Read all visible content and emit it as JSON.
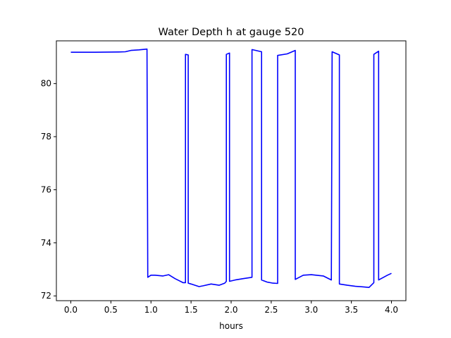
{
  "chart_data": {
    "type": "line",
    "title": "Water Depth h at gauge 520",
    "xlabel": "hours",
    "ylabel": "",
    "xlim": [
      -0.18,
      4.18
    ],
    "ylim": [
      71.82,
      81.61
    ],
    "xticks": [
      0.0,
      0.5,
      1.0,
      1.5,
      2.0,
      2.5,
      3.0,
      3.5,
      4.0
    ],
    "xtick_labels": [
      "0.0",
      "0.5",
      "1.0",
      "1.5",
      "2.0",
      "2.5",
      "3.0",
      "3.5",
      "4.0"
    ],
    "yticks": [
      72,
      74,
      76,
      78,
      80
    ],
    "ytick_labels": [
      "72",
      "74",
      "76",
      "78",
      "80"
    ],
    "grid": false,
    "series": [
      {
        "color": "#0000ff",
        "x": [
          0.0,
          0.3,
          0.6,
          0.68,
          0.75,
          0.85,
          0.95,
          0.96,
          1.0,
          1.05,
          1.15,
          1.22,
          1.3,
          1.4,
          1.43,
          1.43,
          1.465,
          1.465,
          1.5,
          1.6,
          1.65,
          1.75,
          1.85,
          1.92,
          1.94,
          1.94,
          1.98,
          1.98,
          2.05,
          2.15,
          2.26,
          2.26,
          2.38,
          2.38,
          2.45,
          2.52,
          2.58,
          2.58,
          2.7,
          2.8,
          2.8,
          2.9,
          3.0,
          3.15,
          3.25,
          3.26,
          3.35,
          3.35,
          3.45,
          3.55,
          3.65,
          3.72,
          3.78,
          3.78,
          3.84,
          3.84,
          3.95,
          4.0
        ],
        "y": [
          81.18,
          81.18,
          81.19,
          81.2,
          81.25,
          81.27,
          81.3,
          72.7,
          72.78,
          72.78,
          72.75,
          72.8,
          72.65,
          72.5,
          72.5,
          81.1,
          81.08,
          72.48,
          72.45,
          72.35,
          72.38,
          72.45,
          72.4,
          72.48,
          72.55,
          81.1,
          81.15,
          72.55,
          72.6,
          72.65,
          72.7,
          81.28,
          81.2,
          72.6,
          72.52,
          72.48,
          72.47,
          81.06,
          81.12,
          81.25,
          72.62,
          72.78,
          72.8,
          72.75,
          72.6,
          81.2,
          81.08,
          72.45,
          72.4,
          72.36,
          72.34,
          72.32,
          72.5,
          81.1,
          81.22,
          72.6,
          72.78,
          72.85
        ]
      }
    ]
  }
}
